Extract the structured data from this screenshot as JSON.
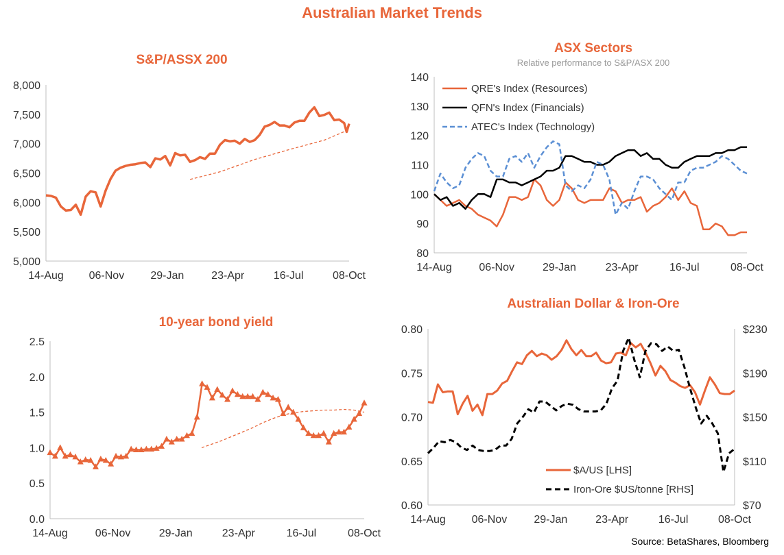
{
  "title": "Australian Market Trends",
  "source": "Source: BetaShares, Bloomberg",
  "colors": {
    "accent": "#E8663A",
    "black": "#000000",
    "blue": "#5B8FD4",
    "axis": "#BFBFBF"
  },
  "chart_data": [
    {
      "id": "asx200",
      "type": "line",
      "title": "S&P/ASSX 200",
      "xlabel": "",
      "ylabel": "",
      "x_ticks": [
        "14-Aug",
        "06-Nov",
        "29-Jan",
        "23-Apr",
        "16-Jul",
        "08-Oct"
      ],
      "y_ticks": [
        "5,000",
        "5,500",
        "6,000",
        "6,500",
        "7,000",
        "7,500",
        "8,000"
      ],
      "ylim": [
        5000,
        8000
      ],
      "xlim": [
        0,
        60
      ],
      "grid": false,
      "series": [
        {
          "values": [
            6120,
            6110,
            6080,
            5930,
            5860,
            5870,
            5960,
            5790,
            6100,
            6190,
            6170,
            5930,
            6200,
            6400,
            6540,
            6590,
            6620,
            6640,
            6650,
            6670,
            6680,
            6600,
            6750,
            6730,
            6790,
            6630,
            6840,
            6800,
            6810,
            6690,
            6720,
            6770,
            6740,
            6830,
            6830,
            6980,
            7060,
            7040,
            7050,
            7000,
            7080,
            7030,
            7060,
            7150,
            7290,
            7320,
            7370,
            7310,
            7310,
            7280,
            7360,
            7390,
            7390,
            7530,
            7620,
            7470,
            7490,
            7530,
            7400,
            7410,
            7350,
            7200,
            7340
          ],
          "x": [
            0,
            1,
            2,
            3,
            4,
            5,
            6,
            7,
            8,
            9,
            10,
            11,
            12,
            13,
            14,
            15,
            16,
            17,
            18,
            19,
            20,
            21,
            22,
            23,
            24,
            25,
            26,
            27,
            28,
            29,
            30,
            31,
            32,
            33,
            34,
            35,
            36,
            37,
            38,
            39,
            40,
            41,
            42,
            43,
            44,
            45,
            46,
            47,
            48,
            49,
            50,
            51,
            52,
            53,
            54,
            55,
            56,
            57,
            58,
            59,
            60,
            60.5,
            61
          ]
        },
        {
          "style": "dashed",
          "x": [
            29,
            35,
            42,
            49,
            56,
            61
          ],
          "values": [
            6390,
            6520,
            6730,
            6900,
            7060,
            7240
          ]
        }
      ]
    },
    {
      "id": "sectors",
      "type": "line",
      "title": "ASX Sectors",
      "subtitle": "Relative performance to S&P/ASX 200",
      "xlabel": "",
      "ylabel": "",
      "x_ticks": [
        "14-Aug",
        "06-Nov",
        "29-Jan",
        "23-Apr",
        "16-Jul",
        "08-Oct"
      ],
      "y_ticks": [
        "80",
        "90",
        "100",
        "110",
        "120",
        "130",
        "140"
      ],
      "ylim": [
        80,
        140
      ],
      "xlim": [
        0,
        60
      ],
      "grid": false,
      "legend": "top-left",
      "series": [
        {
          "name": "QRE's Index (Resources)",
          "color": "#E8663A",
          "values": [
            100,
            98,
            96,
            97,
            98,
            96,
            95,
            93,
            92,
            91,
            89,
            93,
            99,
            99,
            98,
            99,
            105,
            103,
            98,
            96,
            98,
            104,
            102,
            98,
            97,
            98,
            98,
            98,
            102,
            101,
            97,
            98,
            98,
            99,
            94,
            96,
            97,
            99,
            102,
            98,
            101,
            97,
            96,
            88,
            88,
            90,
            89,
            86,
            86,
            87,
            87
          ]
        },
        {
          "name": "QFN's Index (Financials)",
          "color": "#000000",
          "values": [
            100,
            98,
            99,
            96,
            97,
            95,
            98,
            100,
            100,
            99,
            105,
            105,
            104,
            104,
            103,
            104,
            105,
            106,
            108,
            108,
            109,
            113,
            113,
            112,
            111,
            111,
            110,
            110,
            111,
            113,
            114,
            115,
            115,
            113,
            114,
            112,
            112,
            110,
            109,
            109,
            111,
            112,
            113,
            113,
            113,
            114,
            114,
            115,
            115,
            116,
            116
          ]
        },
        {
          "name": "ATEC's Index (Technology)",
          "color": "#5B8FD4",
          "style": "dashed",
          "values": [
            101,
            107,
            104,
            102,
            103,
            109,
            112,
            114,
            113,
            108,
            106,
            106,
            112,
            113,
            111,
            114,
            109,
            113,
            116,
            118,
            117,
            103,
            101,
            103,
            102,
            105,
            111,
            110,
            105,
            93,
            97,
            95,
            101,
            106,
            106,
            105,
            102,
            100,
            98,
            104,
            104,
            108,
            109,
            109,
            110,
            111,
            113,
            112,
            110,
            108,
            107
          ]
        }
      ]
    },
    {
      "id": "bond",
      "type": "line",
      "title": "10-year bond yield",
      "xlabel": "",
      "ylabel": "",
      "x_ticks": [
        "14-Aug",
        "06-Nov",
        "29-Jan",
        "23-Apr",
        "16-Jul",
        "08-Oct"
      ],
      "y_ticks": [
        "0.0",
        "0.5",
        "1.0",
        "1.5",
        "2.0",
        "2.5"
      ],
      "ylim": [
        0,
        2.5
      ],
      "grid": false,
      "series": [
        {
          "marker": "triangle",
          "values": [
            0.93,
            0.88,
            1.0,
            0.88,
            0.9,
            0.87,
            0.8,
            0.83,
            0.82,
            0.73,
            0.84,
            0.82,
            0.77,
            0.88,
            0.87,
            0.88,
            0.98,
            0.97,
            0.97,
            0.98,
            0.98,
            0.99,
            1.02,
            1.12,
            1.08,
            1.12,
            1.12,
            1.17,
            1.2,
            1.43,
            1.9,
            1.85,
            1.7,
            1.82,
            1.74,
            1.68,
            1.8,
            1.75,
            1.72,
            1.72,
            1.72,
            1.68,
            1.78,
            1.75,
            1.7,
            1.68,
            1.48,
            1.57,
            1.5,
            1.4,
            1.28,
            1.2,
            1.17,
            1.17,
            1.2,
            1.08,
            1.2,
            1.22,
            1.22,
            1.29,
            1.4,
            1.48,
            1.63
          ]
        },
        {
          "style": "dashed",
          "values": [
            1.0,
            1.05,
            1.1,
            1.16,
            1.22,
            1.28,
            1.35,
            1.41,
            1.46,
            1.49,
            1.51,
            1.52,
            1.53,
            1.53,
            1.54,
            1.53,
            1.5
          ]
        }
      ]
    },
    {
      "id": "aud_iron",
      "type": "line",
      "title": "Australian Dollar  & Iron-Ore",
      "xlabel": "",
      "ylabel": "",
      "x_ticks": [
        "14-Aug",
        "06-Nov",
        "29-Jan",
        "23-Apr",
        "16-Jul",
        "08-Oct"
      ],
      "y_ticks_left": [
        "0.60",
        "0.65",
        "0.70",
        "0.75",
        "0.80"
      ],
      "y_ticks_right": [
        "$70",
        "$110",
        "$150",
        "$190",
        "$230"
      ],
      "ylim_left": [
        0.6,
        0.8
      ],
      "ylim_right": [
        70,
        230
      ],
      "legend": "bottom-center",
      "series": [
        {
          "name": "$A/US [LHS]",
          "axis": "left",
          "color": "#E8663A",
          "values": [
            0.717,
            0.716,
            0.737,
            0.728,
            0.729,
            0.729,
            0.703,
            0.715,
            0.724,
            0.707,
            0.714,
            0.702,
            0.726,
            0.726,
            0.73,
            0.738,
            0.741,
            0.752,
            0.762,
            0.76,
            0.77,
            0.775,
            0.769,
            0.772,
            0.77,
            0.765,
            0.769,
            0.776,
            0.787,
            0.777,
            0.77,
            0.776,
            0.769,
            0.769,
            0.773,
            0.764,
            0.761,
            0.762,
            0.772,
            0.773,
            0.77,
            0.784,
            0.779,
            0.783,
            0.773,
            0.761,
            0.747,
            0.758,
            0.752,
            0.742,
            0.739,
            0.735,
            0.733,
            0.736,
            0.728,
            0.714,
            0.73,
            0.745,
            0.737,
            0.727,
            0.726,
            0.726,
            0.73
          ]
        },
        {
          "name": "Iron-Ore $US/tonne [RHS]",
          "axis": "right",
          "color": "#000000",
          "style": "dashed",
          "values": [
            117,
            122,
            128,
            127,
            129,
            127,
            122,
            120,
            124,
            120,
            119,
            119,
            120,
            124,
            124,
            130,
            144,
            150,
            157,
            154,
            164,
            164,
            160,
            156,
            160,
            162,
            161,
            157,
            155,
            155,
            155,
            156,
            162,
            176,
            183,
            210,
            222,
            202,
            186,
            210,
            217,
            216,
            210,
            214,
            210,
            211,
            195,
            176,
            159,
            144,
            151,
            144,
            135,
            100,
            117,
            121
          ]
        }
      ]
    }
  ]
}
